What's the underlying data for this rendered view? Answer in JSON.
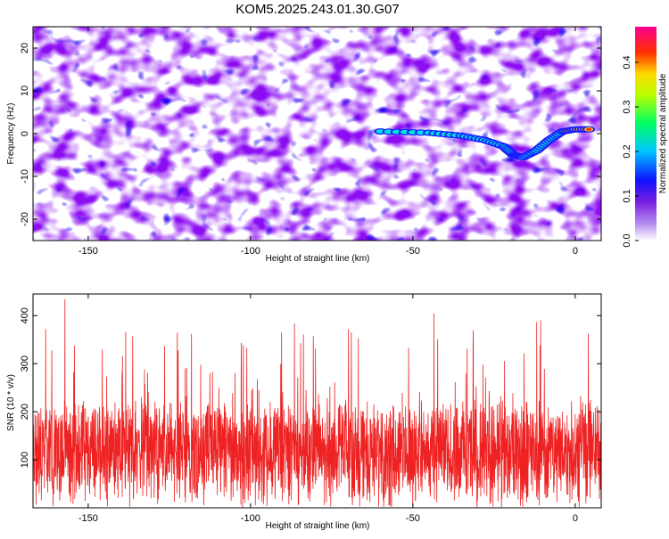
{
  "page": {
    "title": "KOM5.2025.243.01.30.G07"
  },
  "chart_data": [
    {
      "type": "heatmap",
      "name": "spectrogram",
      "xlabel": "Height of straight line (km)",
      "ylabel": "Frequency (Hz)",
      "xlim": [
        -167,
        8
      ],
      "ylim": [
        -25,
        25
      ],
      "xticks": [
        -150,
        -100,
        -50,
        0
      ],
      "yticks": [
        -20,
        -10,
        0,
        10,
        20
      ],
      "colorbar": {
        "label": "Normalized spectral amplitude",
        "range": [
          0,
          0.48
        ],
        "ticks": [
          0.0,
          0.1,
          0.2,
          0.3,
          0.4
        ],
        "colors": [
          "#ffffff",
          "#8a2be2",
          "#0000ff",
          "#00ffff",
          "#00ff00",
          "#ffff00",
          "#ff0000",
          "#ff00aa"
        ]
      },
      "signal_track": {
        "description_x": [
          -60,
          -45,
          -35,
          -28,
          -22,
          -19,
          -16,
          -12,
          -8,
          -4,
          0,
          5
        ],
        "description_y": [
          0.5,
          0.2,
          -0.5,
          -1.5,
          -3,
          -5,
          -5.5,
          -4,
          -1.5,
          0.5,
          1,
          1
        ]
      }
    },
    {
      "type": "line",
      "name": "snr",
      "xlabel": "Height of straight line (km)",
      "ylabel": "SNR (10 * v/v)",
      "xlim": [
        -167,
        8
      ],
      "ylim": [
        0,
        445
      ],
      "xticks": [
        -150,
        -100,
        -50,
        0
      ],
      "yticks": [
        100,
        200,
        300,
        400
      ],
      "color": "#ee2222",
      "series_summary": {
        "mean": 120,
        "min": 0,
        "max": 440
      }
    }
  ]
}
